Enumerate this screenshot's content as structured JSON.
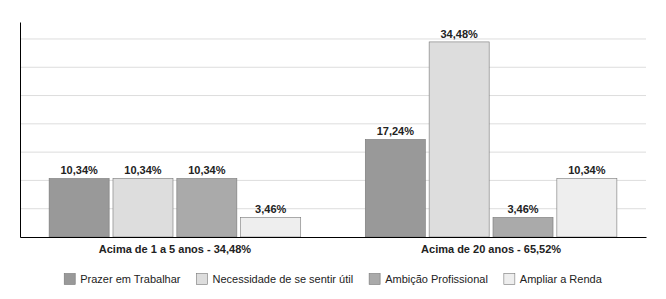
{
  "chart_data": {
    "type": "bar",
    "categories": [
      "Acima de 1 a 5 anos - 34,48%",
      "Acima de  20 anos - 65,52%"
    ],
    "series": [
      {
        "name": "Prazer em Trabalhar",
        "color": "#999999",
        "values": [
          10.34,
          17.24
        ],
        "value_labels": [
          "10,34%",
          "17,24%"
        ]
      },
      {
        "name": "Necessidade de se sentir útil",
        "color": "#dddddd",
        "values": [
          10.34,
          34.48
        ],
        "value_labels": [
          "10,34%",
          "34,48%"
        ]
      },
      {
        "name": "Ambição Profissional",
        "color": "#aaaaaa",
        "values": [
          10.34,
          3.46
        ],
        "value_labels": [
          "10,34%",
          "3,46%"
        ]
      },
      {
        "name": "Ampliar a Renda",
        "color": "#eeeeee",
        "values": [
          3.46,
          10.34
        ],
        "value_labels": [
          "3,46%",
          "10,34%"
        ]
      }
    ],
    "ylim": [
      0,
      38
    ],
    "yticks": [
      5,
      10,
      15,
      20,
      25,
      30,
      35
    ],
    "grid": true,
    "tick_labels": "x",
    "data_labels": true,
    "legend": "bottom"
  }
}
